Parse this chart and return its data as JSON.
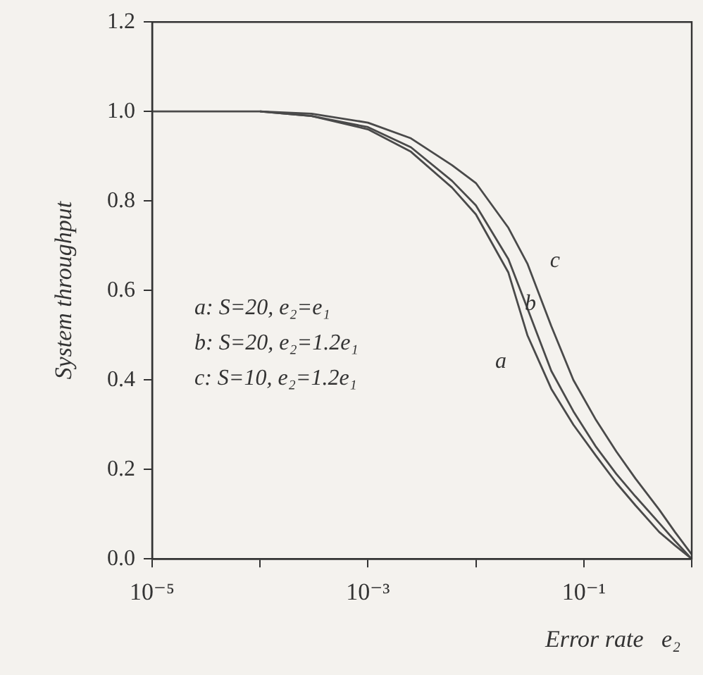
{
  "chart_data": {
    "type": "line",
    "xlabel": "Error rate   e₂",
    "ylabel": "System throughput",
    "x": [
      1e-05,
      0.0001,
      0.0003,
      0.001,
      0.0025,
      0.006,
      0.01,
      0.02,
      0.03,
      0.05,
      0.08,
      0.13,
      0.2,
      0.3,
      0.5,
      0.7,
      1
    ],
    "series": [
      {
        "color": "#4a4a4a",
        "values": [
          1,
          1,
          0.99,
          0.96,
          0.91,
          0.83,
          0.77,
          0.64,
          0.5,
          0.38,
          0.3,
          0.23,
          0.17,
          0.12,
          0.06,
          0.03,
          0
        ]
      },
      {
        "color": "#4a4a4a",
        "x": [
          0.0001,
          0.0003,
          0.001,
          0.0025,
          0.006,
          0.01,
          0.02,
          0.03,
          0.05,
          0.08,
          0.13,
          0.2,
          0.3,
          0.5,
          0.7,
          1
        ],
        "values": [
          1,
          0.99,
          0.965,
          0.92,
          0.845,
          0.79,
          0.67,
          0.56,
          0.42,
          0.33,
          0.25,
          0.19,
          0.14,
          0.08,
          0.04,
          0
        ]
      },
      {
        "color": "#4a4a4a",
        "x": [
          0.0001,
          0.0003,
          0.001,
          0.0025,
          0.006,
          0.01,
          0.02,
          0.03,
          0.05,
          0.08,
          0.13,
          0.2,
          0.3,
          0.5,
          0.7,
          1
        ],
        "values": [
          1,
          0.995,
          0.975,
          0.94,
          0.88,
          0.84,
          0.74,
          0.66,
          0.52,
          0.4,
          0.31,
          0.24,
          0.18,
          0.11,
          0.06,
          0.01
        ]
      }
    ],
    "annotations": [
      "a: S=20, e₂=e₁",
      "b: S=20, e₂=1.2e₁",
      "c: S=10, e₂=1.2e₁",
      "a",
      "b",
      "c"
    ],
    "log": "x",
    "xlim": [
      1e-05,
      1
    ],
    "xticks": [
      {
        "value": 1e-05,
        "label": "10⁻⁵"
      },
      {
        "value": 0.0001,
        "label": null
      },
      {
        "value": 0.001,
        "label": "10⁻³"
      },
      {
        "value": 0.01,
        "label": null
      },
      {
        "value": 0.1,
        "label": "10⁻¹"
      },
      {
        "value": 1,
        "label": null
      }
    ],
    "ylim": [
      0,
      1.2
    ],
    "yticks": [
      {
        "value": 0,
        "label": "0.0"
      },
      {
        "value": 0.2,
        "label": "0.2"
      },
      {
        "value": 0.4,
        "label": "0.4"
      },
      {
        "value": 0.6,
        "label": "0.6"
      },
      {
        "value": 0.8,
        "label": "0.8"
      },
      {
        "value": 1,
        "label": "1.0"
      },
      {
        "value": 1.2,
        "label": "1.2"
      }
    ],
    "grid": false,
    "legend": false,
    "marker": "none",
    "line_style": "solid"
  }
}
